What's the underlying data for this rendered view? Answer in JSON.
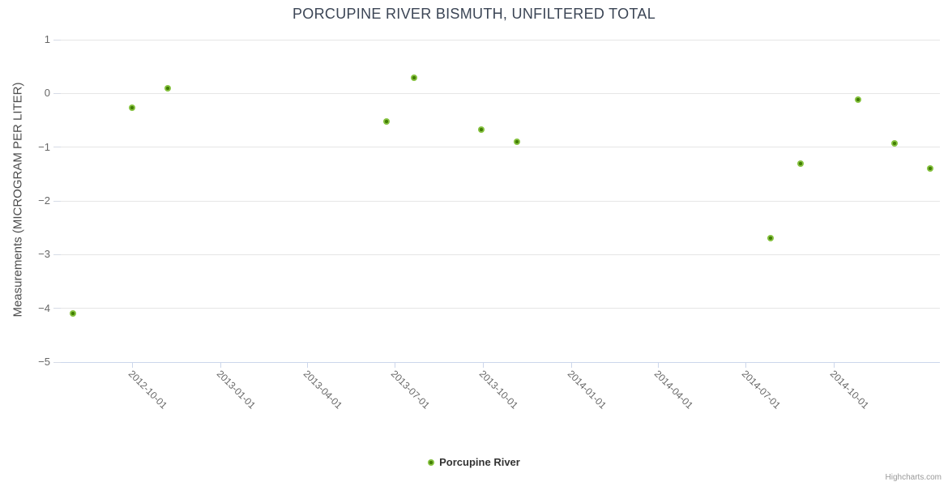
{
  "header": {
    "title": "PORCUPINE RIVER BISMUTH, UNFILTERED TOTAL"
  },
  "legend": {
    "items": [
      {
        "label": "Porcupine River",
        "color": "#85c13f"
      }
    ]
  },
  "credits": {
    "label": "Highcharts.com"
  },
  "colors": {
    "marker_fill": "#85c13f",
    "marker_core": "#427e04",
    "gridline": "#e6e6e6",
    "axis_line": "#ccd6eb",
    "tick_label": "#666666",
    "title_text": "#3b4555",
    "axis_title_text": "#4d4d4d",
    "credits_text": "#999999"
  },
  "chart_data": {
    "type": "scatter",
    "title": "PORCUPINE RIVER BISMUTH, UNFILTERED TOTAL",
    "xlabel": "",
    "ylabel": "Measurements (MICROGRAM PER LITER)",
    "grid": true,
    "legend_position": "bottom-center",
    "ylim": [
      -5,
      1
    ],
    "yticks": [
      1,
      0,
      -1,
      -2,
      -3,
      -4,
      -5
    ],
    "xlim": [
      "2012-07-19",
      "2015-01-19"
    ],
    "xticks": [
      "2012-10-01",
      "2013-01-01",
      "2013-04-01",
      "2013-07-01",
      "2013-10-01",
      "2014-01-01",
      "2014-04-01",
      "2014-07-01",
      "2014-10-01"
    ],
    "series": [
      {
        "name": "Porcupine River",
        "color": "#85c13f",
        "points": [
          {
            "date": "2012-08-01",
            "value": -4.09
          },
          {
            "date": "2012-10-01",
            "value": -0.27
          },
          {
            "date": "2012-11-07",
            "value": 0.1
          },
          {
            "date": "2013-06-23",
            "value": -0.52
          },
          {
            "date": "2013-07-21",
            "value": 0.29
          },
          {
            "date": "2013-09-29",
            "value": -0.67
          },
          {
            "date": "2013-11-05",
            "value": -0.9
          },
          {
            "date": "2014-07-27",
            "value": -2.7
          },
          {
            "date": "2014-08-27",
            "value": -1.3
          },
          {
            "date": "2014-10-26",
            "value": -0.12
          },
          {
            "date": "2014-12-03",
            "value": -0.93
          },
          {
            "date": "2015-01-09",
            "value": -1.39
          }
        ]
      }
    ]
  }
}
